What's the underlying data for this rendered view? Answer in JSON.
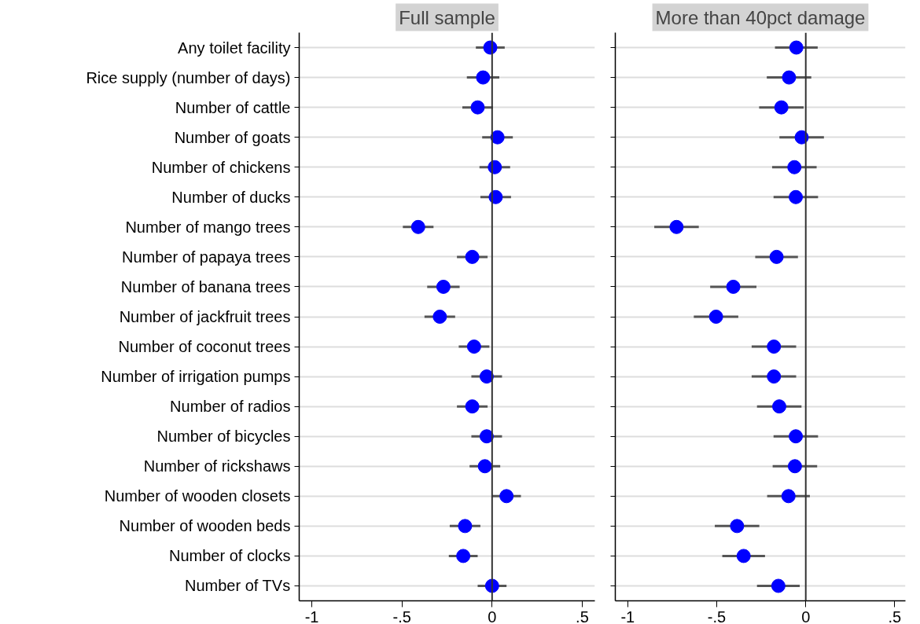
{
  "chart_data": [
    {
      "type": "scatter",
      "orientation": "horizontal",
      "title": "Full sample",
      "marker": "circle",
      "grid": "y",
      "categories": [
        "Any toilet facility",
        "Rice supply (number of days)",
        "Number of cattle",
        "Number of goats",
        "Number of chickens",
        "Number of ducks",
        "Number of mango trees",
        "Number of papaya trees",
        "Number of banana trees",
        "Number of jackfruit trees",
        "Number of coconut trees",
        "Number of irrigation pumps",
        "Number of radios",
        "Number of bicycles",
        "Number of rickshaws",
        "Number of wooden closets",
        "Number of wooden beds",
        "Number of clocks",
        "Number of TVs"
      ],
      "values": [
        -0.01,
        -0.05,
        -0.08,
        0.03,
        0.015,
        0.02,
        -0.41,
        -0.11,
        -0.27,
        -0.29,
        -0.1,
        -0.03,
        -0.11,
        -0.03,
        -0.04,
        0.08,
        -0.15,
        -0.16,
        0.0
      ],
      "errors": [
        0.08,
        0.09,
        0.085,
        0.085,
        0.085,
        0.085,
        0.085,
        0.085,
        0.09,
        0.085,
        0.085,
        0.085,
        0.085,
        0.085,
        0.085,
        0.08,
        0.085,
        0.08,
        0.08
      ],
      "color": "#0000ff",
      "xlim": [
        -1.07,
        0.57
      ],
      "xticks": [
        {
          "value": -1,
          "label": "-1"
        },
        {
          "value": -0.5,
          "label": "-.5"
        },
        0,
        {
          "value": 0.5,
          "label": ".5"
        }
      ],
      "ref_lines": [
        {
          "axis": "x",
          "value": 0,
          "label": null,
          "color": "#333333"
        }
      ]
    },
    {
      "type": "scatter",
      "orientation": "horizontal",
      "title": "More than 40pct damage",
      "marker": "circle",
      "grid": "y",
      "tick_labels": "x",
      "values": [
        -0.053,
        -0.094,
        -0.137,
        -0.023,
        -0.064,
        -0.056,
        -0.726,
        -0.164,
        -0.407,
        -0.504,
        -0.179,
        -0.179,
        -0.149,
        -0.056,
        -0.061,
        -0.097,
        -0.386,
        -0.349,
        -0.154
      ],
      "errors": [
        0.12,
        0.125,
        0.125,
        0.125,
        0.125,
        0.125,
        0.125,
        0.12,
        0.13,
        0.125,
        0.125,
        0.125,
        0.125,
        0.125,
        0.125,
        0.12,
        0.125,
        0.12,
        0.12
      ],
      "color": "#0000ff",
      "xlim": [
        -1.07,
        0.56
      ],
      "xticks": [
        {
          "value": -1,
          "label": "-1"
        },
        {
          "value": -0.5,
          "label": "-.5"
        },
        0,
        {
          "value": 0.5,
          "label": ".5"
        }
      ],
      "ref_lines": [
        {
          "axis": "x",
          "value": 0,
          "label": null,
          "color": "#333333"
        }
      ]
    }
  ]
}
